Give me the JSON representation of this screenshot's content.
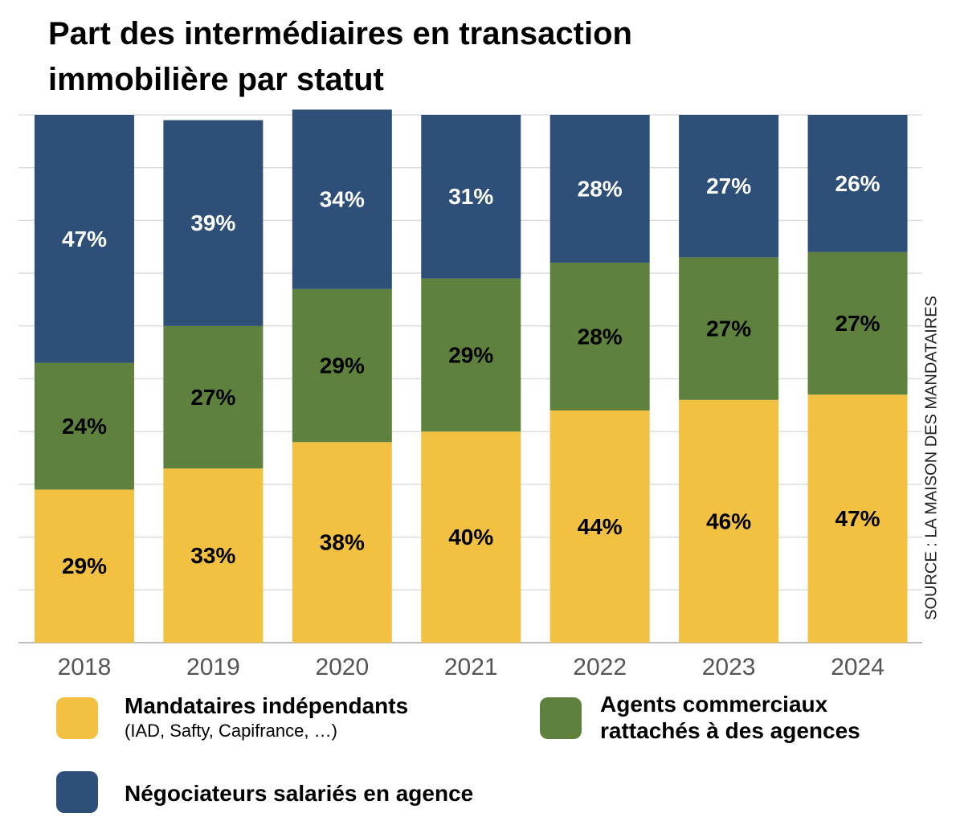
{
  "chart_data": {
    "type": "stacked-bar",
    "title": "Part des intermédiaires en transaction immobilière par statut",
    "source": "SOURCE : LA MAISON DES MANDATAIRES",
    "categories": [
      "2018",
      "2019",
      "2020",
      "2021",
      "2022",
      "2023",
      "2024"
    ],
    "series": [
      {
        "name": "Mandataires indépendants",
        "detail": "(IAD, Safty, Capifrance, …)",
        "color": "#f2c142",
        "label_color": "#000000",
        "values": [
          29,
          33,
          38,
          40,
          44,
          46,
          47
        ],
        "value_labels": [
          "29%",
          "33%",
          "38%",
          "40%",
          "44%",
          "46%",
          "47%"
        ]
      },
      {
        "name": "Agents commerciaux rattachés à des agences",
        "color": "#5e813e",
        "label_color": "#000000",
        "values": [
          24,
          27,
          29,
          29,
          28,
          27,
          27
        ],
        "value_labels": [
          "24%",
          "27%",
          "29%",
          "29%",
          "28%",
          "27%",
          "27%"
        ]
      },
      {
        "name": "Négociateurs salariés en agence",
        "color": "#2d4f78",
        "label_color": "#ffffff",
        "values": [
          47,
          39,
          34,
          31,
          28,
          27,
          26
        ],
        "value_labels": [
          "47%",
          "39%",
          "34%",
          "31%",
          "28%",
          "27%",
          "26%"
        ]
      }
    ],
    "ylim": [
      0,
      100
    ],
    "yticks": [
      0,
      10,
      20,
      30,
      40,
      50,
      60,
      70,
      80,
      90,
      100
    ],
    "grid": true
  }
}
